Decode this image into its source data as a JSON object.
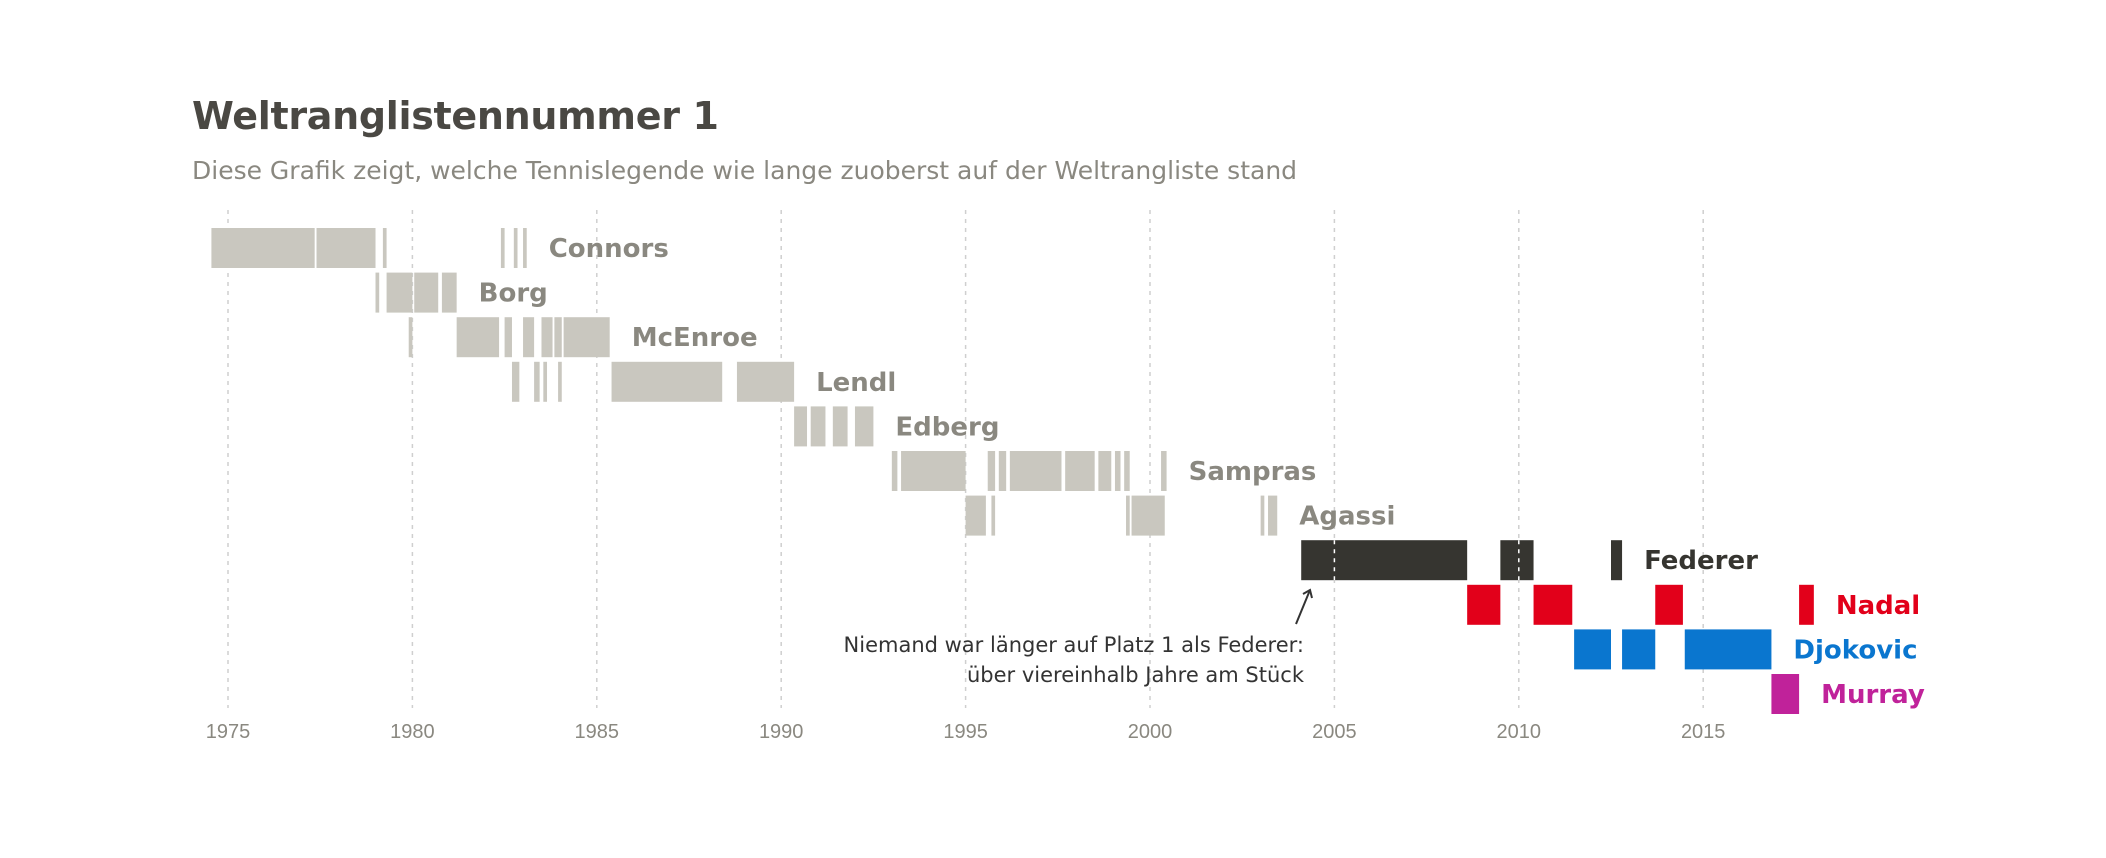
{
  "title": "Weltranglistennummer 1",
  "subtitle": "Diese Grafik zeigt, welche Tennislegende wie lange zuoberst auf der Weltrangliste stand",
  "annotation": {
    "line1": "Niemand war länger auf Platz 1 als Federer:",
    "line2": "über viereinhalb Jahre am Stück"
  },
  "colors": {
    "legacy": "#c9c7bf",
    "legacy_label": "#8a8880",
    "federer": "#363530",
    "nadal": "#e2001a",
    "djokovic": "#0a76cf",
    "murray": "#c0229a",
    "grid": "#cfcfcf",
    "tick": "#8a8880"
  },
  "chart_data": {
    "type": "timeline",
    "title": "Weltranglistennummer 1",
    "subtitle": "Diese Grafik zeigt, welche Tennislegende wie lange zuoberst auf der Weltrangliste stand",
    "xlim": [
      1973.3,
      2018.0
    ],
    "x_ticks": [
      1975,
      1980,
      1985,
      1990,
      1995,
      2000,
      2005,
      2010,
      2015
    ],
    "grid": "vertical dashed",
    "series": [
      {
        "name": "Connors",
        "color_key": "legacy",
        "label_color_key": "legacy_label",
        "periods": [
          [
            1974.55,
            1977.35
          ],
          [
            1977.4,
            1979.0
          ],
          [
            1979.2,
            1979.3
          ],
          [
            1982.4,
            1982.5
          ],
          [
            1982.75,
            1982.85
          ],
          [
            1983.0,
            1983.1
          ]
        ]
      },
      {
        "name": "Borg",
        "color_key": "legacy",
        "label_color_key": "legacy_label",
        "periods": [
          [
            1979.0,
            1979.1
          ],
          [
            1979.3,
            1980.0
          ],
          [
            1980.05,
            1980.7
          ],
          [
            1980.8,
            1981.2
          ]
        ]
      },
      {
        "name": "McEnroe",
        "color_key": "legacy",
        "label_color_key": "legacy_label",
        "periods": [
          [
            1979.9,
            1980.0
          ],
          [
            1981.2,
            1982.35
          ],
          [
            1982.5,
            1982.7
          ],
          [
            1983.0,
            1983.3
          ],
          [
            1983.5,
            1983.8
          ],
          [
            1983.85,
            1984.05
          ],
          [
            1984.1,
            1985.35
          ]
        ]
      },
      {
        "name": "Lendl",
        "color_key": "legacy",
        "label_color_key": "legacy_label",
        "periods": [
          [
            1982.7,
            1982.9
          ],
          [
            1983.3,
            1983.45
          ],
          [
            1983.55,
            1983.65
          ],
          [
            1983.95,
            1984.05
          ],
          [
            1985.4,
            1988.4
          ],
          [
            1988.8,
            1990.35
          ]
        ]
      },
      {
        "name": "Edberg",
        "color_key": "legacy",
        "label_color_key": "legacy_label",
        "periods": [
          [
            1990.35,
            1990.7
          ],
          [
            1990.8,
            1991.2
          ],
          [
            1991.4,
            1991.8
          ],
          [
            1992.0,
            1992.5
          ]
        ]
      },
      {
        "name": "Sampras",
        "color_key": "legacy",
        "label_color_key": "legacy_label",
        "periods": [
          [
            1993.0,
            1993.15
          ],
          [
            1993.25,
            1995.0
          ],
          [
            1995.6,
            1995.8
          ],
          [
            1995.9,
            1996.1
          ],
          [
            1996.2,
            1997.6
          ],
          [
            1997.7,
            1998.5
          ],
          [
            1998.6,
            1998.95
          ],
          [
            1999.05,
            1999.2
          ],
          [
            1999.3,
            1999.45
          ],
          [
            2000.3,
            2000.45
          ]
        ]
      },
      {
        "name": "Agassi",
        "color_key": "legacy",
        "label_color_key": "legacy_label",
        "periods": [
          [
            1995.0,
            1995.55
          ],
          [
            1995.7,
            1995.8
          ],
          [
            1999.35,
            1999.45
          ],
          [
            1999.5,
            2000.4
          ],
          [
            2003.0,
            2003.1
          ],
          [
            2003.2,
            2003.45
          ]
        ]
      },
      {
        "name": "Federer",
        "color_key": "federer",
        "label_color_key": "federer",
        "periods": [
          [
            2004.1,
            2008.6
          ],
          [
            2009.5,
            2010.4
          ],
          [
            2012.5,
            2012.8
          ]
        ]
      },
      {
        "name": "Nadal",
        "color_key": "nadal",
        "label_color_key": "nadal",
        "periods": [
          [
            2008.6,
            2009.5
          ],
          [
            2010.4,
            2011.45
          ],
          [
            2013.7,
            2014.45
          ],
          [
            2017.6,
            2018.0
          ]
        ]
      },
      {
        "name": "Djokovic",
        "color_key": "djokovic",
        "label_color_key": "djokovic",
        "periods": [
          [
            2011.5,
            2012.5
          ],
          [
            2012.8,
            2013.7
          ],
          [
            2014.5,
            2016.85
          ]
        ]
      },
      {
        "name": "Murray",
        "color_key": "murray",
        "label_color_key": "murray",
        "periods": [
          [
            2016.85,
            2017.6
          ]
        ]
      }
    ]
  }
}
